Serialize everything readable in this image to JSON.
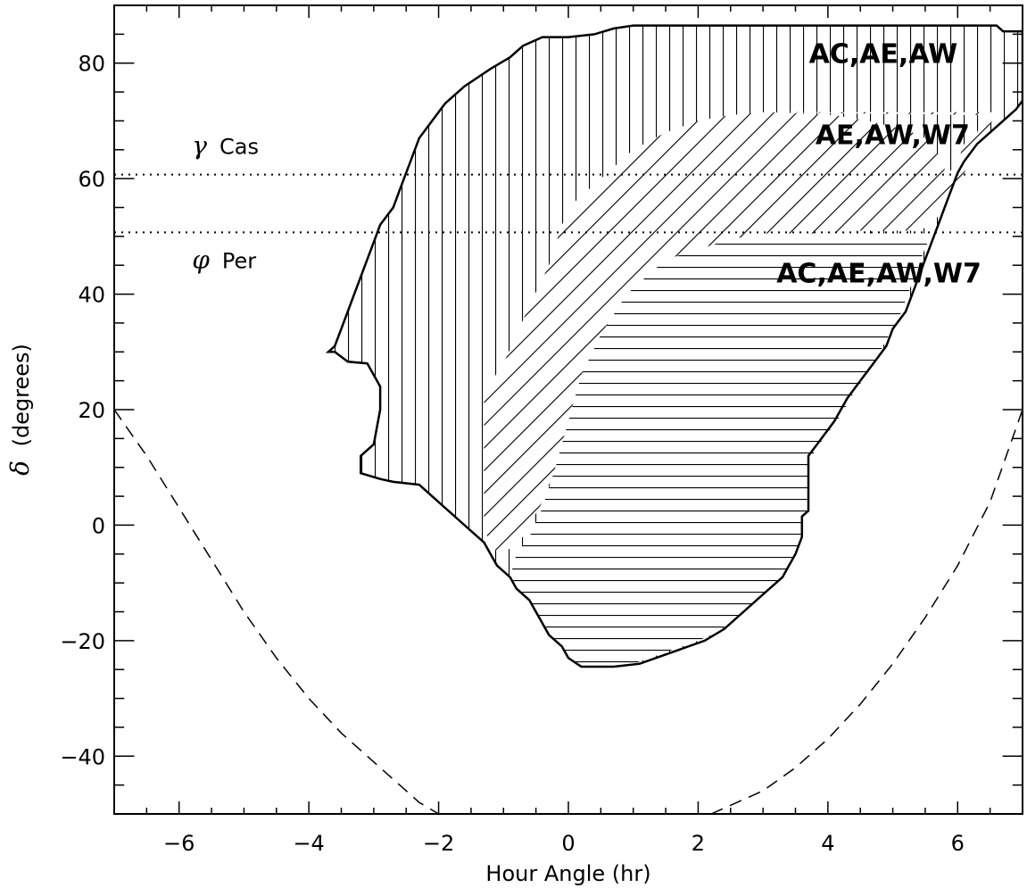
{
  "chart_data": {
    "type": "area",
    "xlabel": "Hour Angle (hr)",
    "ylabel_symbol": "δ",
    "ylabel_text": "(degrees)",
    "xlim": [
      -7,
      7
    ],
    "ylim": [
      -50,
      90
    ],
    "x_ticks": [
      -6,
      -4,
      -2,
      0,
      2,
      4,
      6
    ],
    "x_tick_labels": [
      "−6",
      "−4",
      "−2",
      "0",
      "2",
      "4",
      "6"
    ],
    "y_ticks": [
      80,
      60,
      40,
      20,
      0,
      -20,
      -40
    ],
    "y_tick_labels": [
      "80",
      "60",
      "40",
      "20",
      "0",
      "−20",
      "−40"
    ],
    "x_minor_step": 0.5,
    "y_minor_step": 5,
    "grid": false,
    "reference_lines": [
      {
        "symbol": "γ",
        "name": "Cas",
        "dec": 60.7
      },
      {
        "symbol": "φ",
        "name": "Per",
        "dec": 50.7
      }
    ],
    "regions": [
      {
        "name": "AC,AE,AW",
        "hatch": "vertical",
        "label_at": [
          3.9,
          80
        ],
        "boundary": [
          [
            -3.7,
            30
          ],
          [
            -3.6,
            30
          ],
          [
            -3.5,
            29
          ],
          [
            -3.4,
            28
          ],
          [
            -3.1,
            28
          ],
          [
            -2.95,
            24.3
          ],
          [
            -2.9,
            20
          ],
          [
            -2.95,
            14
          ],
          [
            -3,
            12
          ],
          [
            -3.1,
            9
          ],
          [
            -3.2,
            8
          ],
          [
            -3.2,
            9
          ],
          [
            -3.1,
            12
          ],
          [
            -3,
            14
          ],
          [
            -2.9,
            17
          ],
          [
            -2.9,
            20
          ],
          [
            -2.9,
            23
          ],
          [
            -2.95,
            24
          ],
          [
            -3.1,
            28
          ],
          [
            -3.3,
            28
          ],
          [
            -3.5,
            29
          ],
          [
            -3.6,
            30
          ],
          [
            -3.7,
            30
          ]
        ]
      },
      {
        "name": "AE,AW,W7",
        "hatch": "diagonal",
        "label_at": [
          4.0,
          66
        ]
      },
      {
        "name": "AC,AE,AW,W7",
        "hatch": "horizontal",
        "label_at": [
          3.4,
          42
        ]
      }
    ],
    "outer_boundary": [
      [
        -3.7,
        30
      ],
      [
        -3.6,
        31
      ],
      [
        -3.5,
        34
      ],
      [
        -3.4,
        37
      ],
      [
        -3.3,
        40
      ],
      [
        -3.2,
        43
      ],
      [
        -3.1,
        46
      ],
      [
        -3,
        49
      ],
      [
        -2.9,
        52
      ],
      [
        -2.7,
        55
      ],
      [
        -2.6,
        58
      ],
      [
        -2.5,
        61
      ],
      [
        -2.4,
        64
      ],
      [
        -2.3,
        67
      ],
      [
        -2.1,
        70
      ],
      [
        -1.9,
        73
      ],
      [
        -1.6,
        76
      ],
      [
        -1.2,
        79
      ],
      [
        -0.9,
        81
      ],
      [
        -0.7,
        83
      ],
      [
        -0.4,
        84.5
      ],
      [
        0,
        84.5
      ],
      [
        0.4,
        85
      ],
      [
        0.7,
        86
      ],
      [
        1.0,
        86.5
      ],
      [
        6.6,
        86.5
      ],
      [
        6.7,
        85.5
      ],
      [
        7,
        85.5
      ],
      [
        7,
        73.5
      ],
      [
        6.9,
        72
      ],
      [
        6.7,
        70
      ],
      [
        6.5,
        68
      ],
      [
        6.3,
        66
      ],
      [
        6.1,
        63
      ],
      [
        6.0,
        61
      ],
      [
        5.9,
        58
      ],
      [
        5.8,
        55
      ],
      [
        5.7,
        52
      ],
      [
        5.6,
        49
      ],
      [
        5.5,
        46
      ],
      [
        5.4,
        43
      ],
      [
        5.3,
        40
      ],
      [
        5.2,
        37
      ],
      [
        5.0,
        34
      ],
      [
        4.9,
        31
      ],
      [
        4.7,
        28
      ],
      [
        4.5,
        25
      ],
      [
        4.3,
        22
      ],
      [
        4.1,
        18
      ],
      [
        3.9,
        15
      ],
      [
        3.7,
        12
      ],
      [
        3.7,
        2.5
      ],
      [
        3.6,
        1.5
      ],
      [
        3.6,
        -2
      ],
      [
        3.5,
        -5
      ],
      [
        3.4,
        -7
      ],
      [
        3.3,
        -9
      ],
      [
        3.0,
        -12
      ],
      [
        2.7,
        -15
      ],
      [
        2.4,
        -18
      ],
      [
        2.1,
        -20
      ],
      [
        1.6,
        -22
      ],
      [
        1.1,
        -24
      ],
      [
        0.7,
        -24.5
      ],
      [
        0.2,
        -24.5
      ],
      [
        0.0,
        -23
      ],
      [
        -0.1,
        -21
      ],
      [
        -0.3,
        -19
      ],
      [
        -0.4,
        -17
      ],
      [
        -0.5,
        -15
      ],
      [
        -0.6,
        -13
      ],
      [
        -0.8,
        -11
      ],
      [
        -0.9,
        -9
      ],
      [
        -1.1,
        -7
      ],
      [
        -1.2,
        -5
      ],
      [
        -1.3,
        -3
      ],
      [
        -1.5,
        -1
      ],
      [
        -1.7,
        1
      ],
      [
        -1.9,
        3
      ],
      [
        -2.1,
        5
      ],
      [
        -2.3,
        7
      ],
      [
        -2.7,
        7.5
      ],
      [
        -2.9,
        8
      ],
      [
        -3.2,
        9
      ],
      [
        -3.2,
        12
      ],
      [
        -3,
        14
      ],
      [
        -2.95,
        17
      ],
      [
        -2.9,
        20
      ],
      [
        -2.9,
        24
      ],
      [
        -3.1,
        28
      ],
      [
        -3.4,
        28.3
      ],
      [
        -3.6,
        30
      ],
      [
        -3.7,
        30
      ]
    ],
    "diagonal_boundary": [
      [
        -1.3,
        23
      ],
      [
        -1.0,
        28
      ],
      [
        -0.8,
        33
      ],
      [
        -0.6,
        38
      ],
      [
        -0.3,
        45
      ],
      [
        -0.1,
        52
      ],
      [
        0.1,
        56
      ],
      [
        0.5,
        60
      ],
      [
        1.0,
        65
      ],
      [
        1.5,
        68
      ],
      [
        2.0,
        70
      ],
      [
        2.5,
        71
      ],
      [
        3.0,
        71.5
      ],
      [
        6.6,
        71.5
      ],
      [
        6.4,
        67
      ],
      [
        6.2,
        63
      ],
      [
        6.0,
        59
      ],
      [
        5.8,
        55
      ],
      [
        5.6,
        52
      ],
      [
        5.4,
        51
      ],
      [
        4.5,
        51
      ],
      [
        4.0,
        51.5
      ],
      [
        3.6,
        52.5
      ],
      [
        3.5,
        53
      ],
      [
        4.9,
        53
      ],
      [
        5.3,
        54
      ],
      [
        5.5,
        55
      ],
      [
        5.6,
        56
      ],
      [
        5.7,
        58
      ],
      [
        5.8,
        60
      ],
      [
        6.0,
        63
      ],
      [
        6.1,
        66
      ],
      [
        6.3,
        68
      ],
      [
        6.4,
        71
      ],
      [
        3.1,
        71.5
      ],
      [
        4.1,
        71
      ],
      [
        4.6,
        70
      ],
      [
        5.0,
        69
      ],
      [
        5.3,
        68
      ],
      [
        5.5,
        67
      ],
      [
        5.6,
        66
      ],
      [
        5.7,
        64
      ],
      [
        5.8,
        62
      ],
      [
        5.8,
        60
      ],
      [
        5.7,
        58
      ],
      [
        5.6,
        55
      ],
      [
        5.5,
        52
      ],
      [
        2.5,
        49
      ],
      [
        1.5,
        46
      ],
      [
        0.9,
        40
      ],
      [
        0.5,
        33
      ],
      [
        0.2,
        26
      ],
      [
        0.0,
        18
      ],
      [
        -0.2,
        10
      ],
      [
        -0.4,
        4
      ],
      [
        -0.7,
        -2
      ],
      [
        -1.0,
        -5
      ],
      [
        -1.2,
        -4
      ],
      [
        -1.3,
        0
      ],
      [
        -1.3,
        10
      ],
      [
        -1.3,
        23
      ]
    ],
    "horizontal_boundary": [
      [
        -0.9,
        -9
      ],
      [
        -0.8,
        -5
      ],
      [
        -0.6,
        -2
      ],
      [
        -0.4,
        3
      ],
      [
        -0.2,
        10
      ],
      [
        0.0,
        18
      ],
      [
        0.2,
        26
      ],
      [
        0.5,
        33
      ],
      [
        0.9,
        40
      ],
      [
        1.5,
        46
      ],
      [
        2.5,
        49.5
      ],
      [
        3.0,
        50.5
      ],
      [
        5.6,
        50.5
      ],
      [
        5.5,
        48
      ],
      [
        5.4,
        45
      ],
      [
        5.3,
        42
      ],
      [
        5.2,
        39
      ],
      [
        5.1,
        36
      ],
      [
        4.95,
        33
      ],
      [
        4.8,
        30
      ],
      [
        4.6,
        26
      ],
      [
        4.4,
        23
      ],
      [
        4.2,
        19
      ],
      [
        4.0,
        16
      ],
      [
        3.8,
        13
      ],
      [
        3.7,
        10
      ],
      [
        3.7,
        2.5
      ],
      [
        3.6,
        1
      ],
      [
        3.6,
        -2
      ],
      [
        3.5,
        -5
      ],
      [
        3.4,
        -7
      ],
      [
        3.2,
        -10
      ],
      [
        2.9,
        -13
      ],
      [
        2.6,
        -16
      ],
      [
        2.3,
        -18.5
      ],
      [
        2.0,
        -20
      ],
      [
        1.5,
        -22
      ],
      [
        1.0,
        -24
      ],
      [
        0.6,
        -24.5
      ],
      [
        0.2,
        -24.5
      ],
      [
        0.0,
        -23
      ],
      [
        -0.1,
        -21
      ],
      [
        -0.3,
        -19
      ],
      [
        -0.4,
        -17
      ],
      [
        -0.5,
        -15
      ],
      [
        -0.6,
        -13
      ],
      [
        -0.8,
        -11
      ],
      [
        -0.9,
        -9
      ]
    ],
    "dashed_curve": [
      [
        -7,
        20
      ],
      [
        -6.5,
        12
      ],
      [
        -6,
        3
      ],
      [
        -5.5,
        -6
      ],
      [
        -5,
        -15
      ],
      [
        -4.5,
        -23
      ],
      [
        -4,
        -30
      ],
      [
        -3.5,
        -36
      ],
      [
        -3,
        -41
      ],
      [
        -2.6,
        -45
      ],
      [
        -2.3,
        -48
      ],
      [
        -2.0,
        -50
      ]
    ],
    "dashed_curve_right": [
      [
        2.2,
        -50
      ],
      [
        2.6,
        -48
      ],
      [
        3.0,
        -46
      ],
      [
        3.5,
        -42
      ],
      [
        4.0,
        -37
      ],
      [
        4.5,
        -31
      ],
      [
        5.0,
        -24
      ],
      [
        5.5,
        -16
      ],
      [
        6.0,
        -7
      ],
      [
        6.5,
        4
      ],
      [
        7,
        20
      ]
    ],
    "label_texts": [
      "AC,AE,AW",
      "AE,AW,W7",
      "AC,AE,AW,W7"
    ]
  }
}
